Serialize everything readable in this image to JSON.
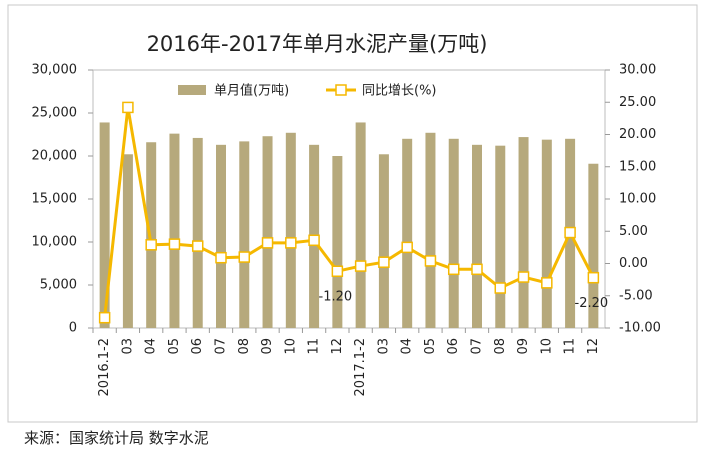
{
  "chart_data": {
    "type": "bar_line",
    "title": "2016年-2017年单月水泥产量(万吨)",
    "categories": [
      "2016.1-2",
      "03",
      "04",
      "05",
      "06",
      "07",
      "08",
      "09",
      "10",
      "11",
      "12",
      "2017.1-2",
      "03",
      "04",
      "05",
      "06",
      "07",
      "08",
      "09",
      "10",
      "11",
      "12"
    ],
    "series": [
      {
        "name": "单月值(万吨)",
        "color": "#b6a97c",
        "type": "bar",
        "values": [
          23900,
          20200,
          21600,
          22600,
          22100,
          21300,
          21700,
          22300,
          22700,
          21300,
          20000,
          23900,
          20200,
          22000,
          22700,
          22000,
          21300,
          21200,
          22200,
          21900,
          22000,
          19100
        ]
      },
      {
        "name": "同比增长(%)",
        "color": "#f5b800",
        "type": "line",
        "axis": "y2",
        "values": [
          -8.4,
          24.2,
          2.9,
          3.0,
          2.7,
          0.9,
          1.0,
          3.2,
          3.2,
          3.6,
          -1.2,
          -0.4,
          0.2,
          2.5,
          0.4,
          -0.9,
          -0.9,
          -3.8,
          -2.1,
          -3.0,
          4.8,
          -2.2
        ],
        "value_labels": [
          null,
          null,
          null,
          null,
          null,
          null,
          null,
          null,
          null,
          null,
          "-1.20",
          null,
          null,
          null,
          null,
          null,
          null,
          null,
          null,
          null,
          null,
          "-2.20"
        ]
      }
    ],
    "ylim": [
      0,
      30000
    ],
    "yticks": [
      0,
      {
        "value": 5000,
        "label": "5,000"
      },
      {
        "value": 10000,
        "label": "10,000"
      },
      {
        "value": 15000,
        "label": "15,000"
      },
      {
        "value": 20000,
        "label": "20,000"
      },
      {
        "value": 25000,
        "label": "25,000"
      },
      {
        "value": 30000,
        "label": "30,000"
      }
    ],
    "y2lim": [
      -10,
      30
    ],
    "y2ticks": [
      {
        "value": -10,
        "label": "-10.00"
      },
      {
        "value": -5,
        "label": "-5.00"
      },
      {
        "value": 0,
        "label": "0.00"
      },
      {
        "value": 5,
        "label": "5.00"
      },
      {
        "value": 10,
        "label": "10.00"
      },
      {
        "value": 15,
        "label": "15.00"
      },
      {
        "value": 20,
        "label": "20.00"
      },
      {
        "value": 25,
        "label": "25.00"
      },
      {
        "value": 30,
        "label": "30.00"
      }
    ],
    "grid": false
  },
  "source": "来源：国家统计局  数字水泥"
}
